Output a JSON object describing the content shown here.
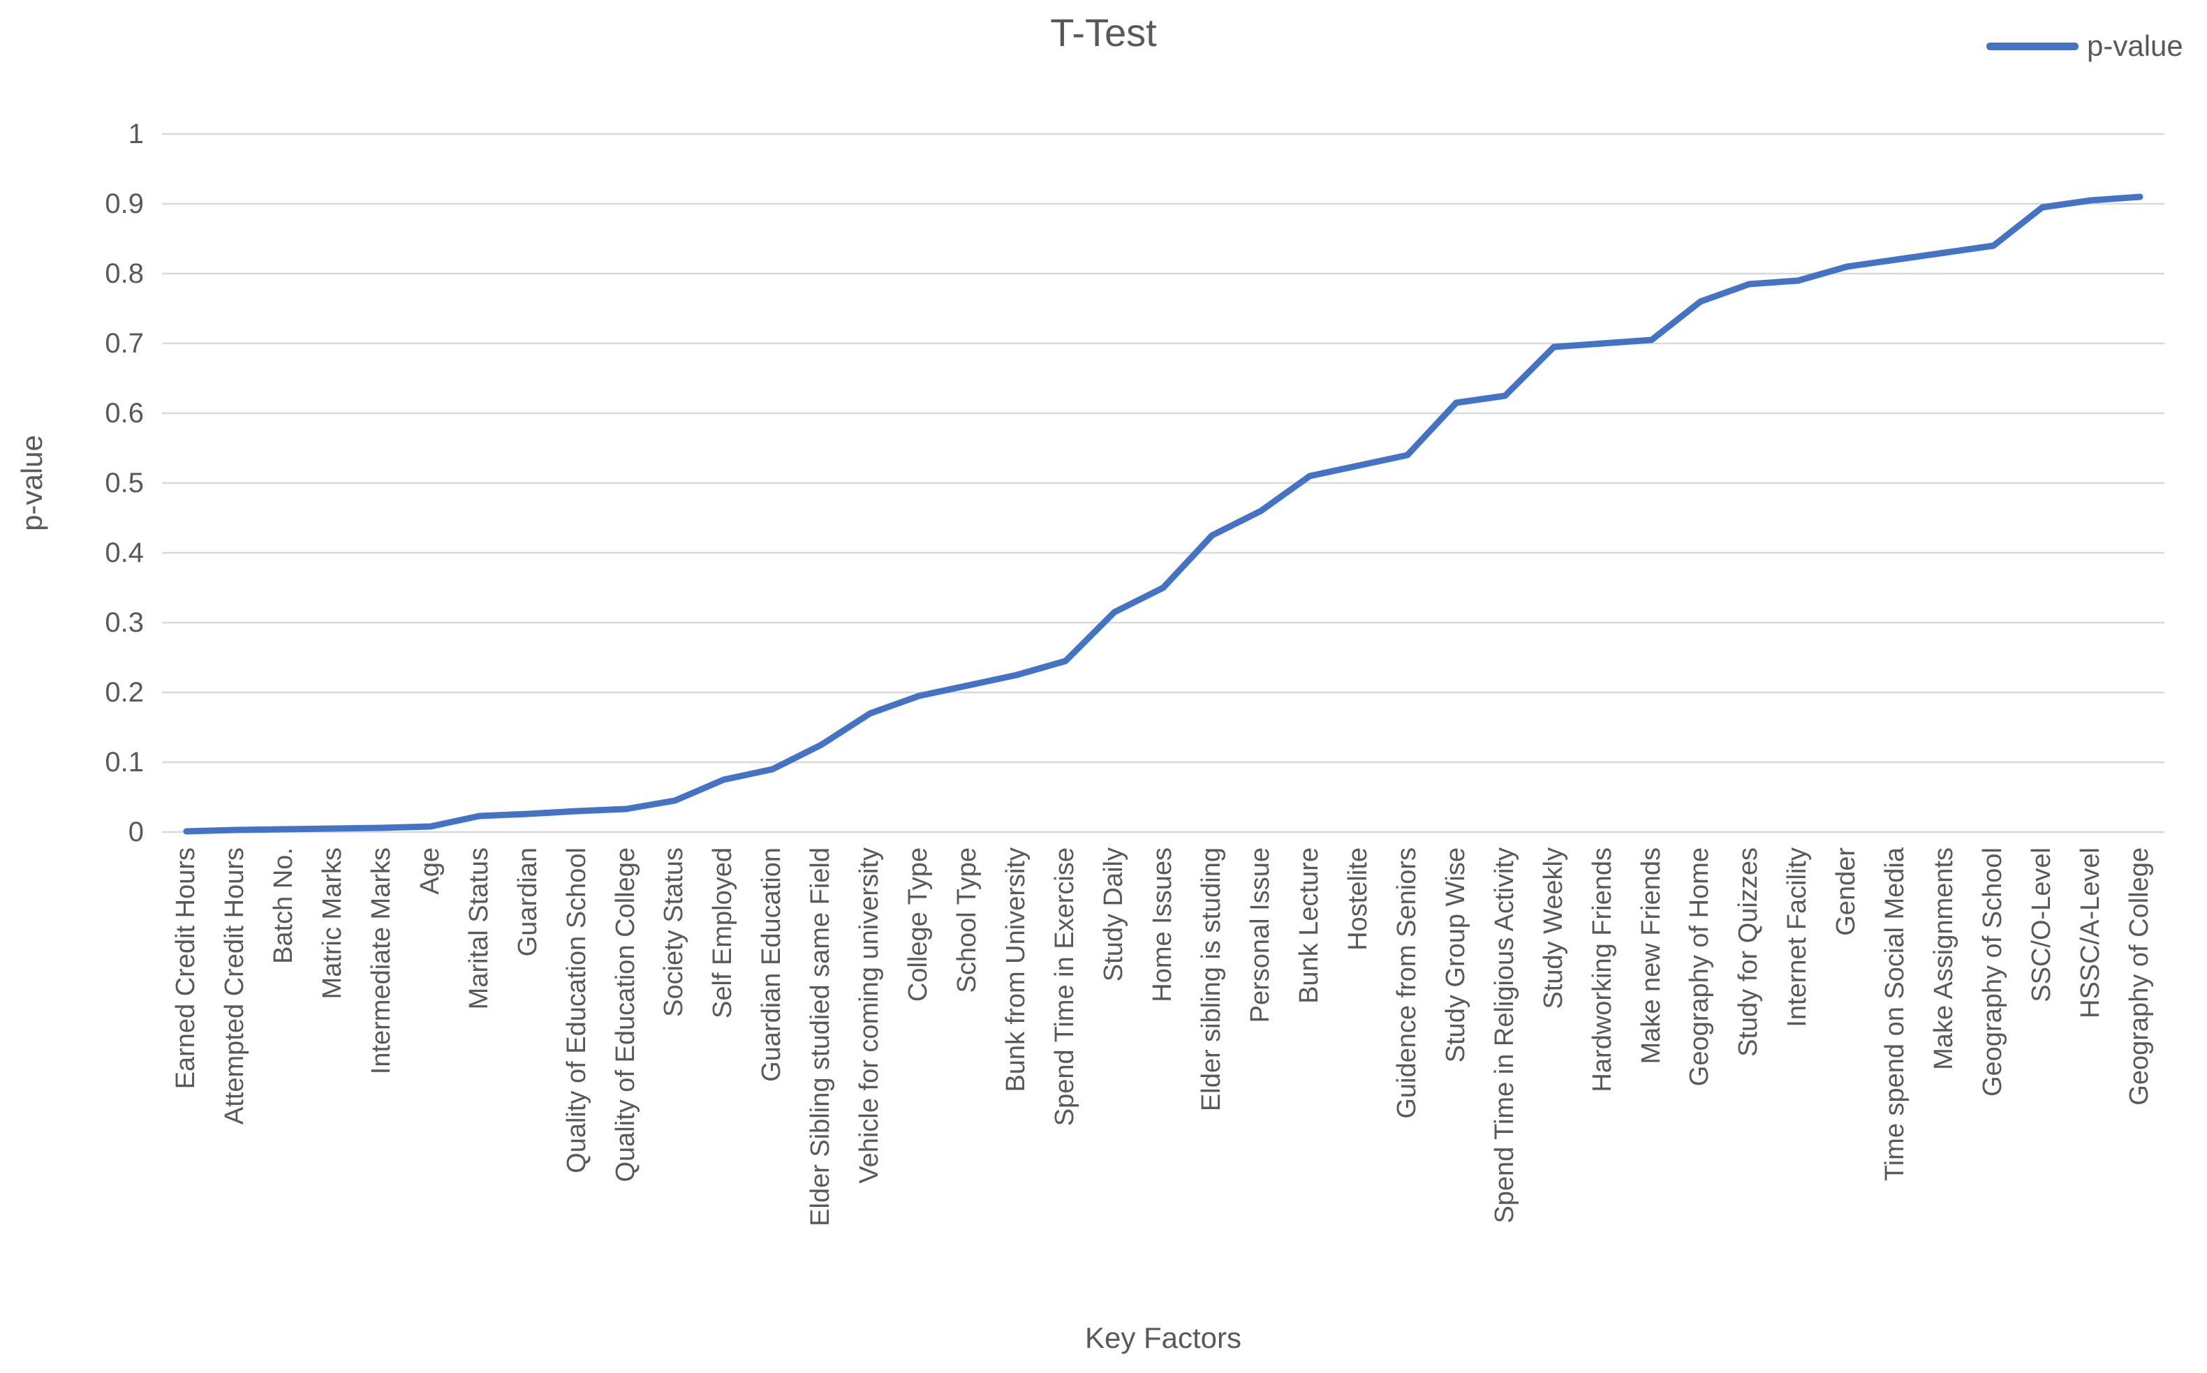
{
  "title": "T-Test",
  "legend": {
    "label": "p-value"
  },
  "y_axis": {
    "title": "p-value"
  },
  "x_axis": {
    "title": "Key Factors"
  },
  "colors": {
    "line": "#4472C4",
    "grid": "#D9D9D9",
    "text": "#595959",
    "background": "#FFFFFF"
  },
  "chart_data": {
    "type": "line",
    "title": "T-Test",
    "xlabel": "Key Factors",
    "ylabel": "p-value",
    "ylim": [
      0,
      1
    ],
    "ytick_step": 0.1,
    "grid": true,
    "legend_position": "top-right",
    "categories": [
      "Earned Credit Hours",
      "Attempted Credit Hours",
      "Batch No.",
      "Matric Marks",
      "Intermediate Marks",
      "Age",
      "Marital Status",
      "Guardian",
      "Quality of Education School",
      "Quality of Education College",
      "Society Status",
      "Self Employed",
      "Guardian Education",
      "Elder Sibling studied same Field",
      "Vehicle for coming university",
      "College Type",
      "School Type",
      "Bunk from University",
      "Spend Time in Exercise",
      "Study Daily",
      "Home Issues",
      "Elder sibling is studing",
      "Personal Issue",
      "Bunk Lecture",
      "Hostelite",
      "Guidence from Seniors",
      "Study Group Wise",
      "Spend Time in Religious Activity",
      "Study Weekly",
      "Hardworking Friends",
      "Make new Friends",
      "Geography of Home",
      "Study for Quizzes",
      "Internet Facility",
      "Gender",
      "Time spend on Social Media",
      "Make Assignments",
      "Geography of School",
      "SSC/O-Level",
      "HSSC/A-Level",
      "Geography of College"
    ],
    "series": [
      {
        "name": "p-value",
        "color": "#4472C4",
        "values": [
          0.001,
          0.003,
          0.004,
          0.005,
          0.006,
          0.008,
          0.023,
          0.026,
          0.03,
          0.033,
          0.045,
          0.075,
          0.09,
          0.125,
          0.17,
          0.195,
          0.21,
          0.225,
          0.245,
          0.315,
          0.35,
          0.425,
          0.46,
          0.51,
          0.525,
          0.54,
          0.615,
          0.625,
          0.695,
          0.7,
          0.705,
          0.76,
          0.785,
          0.79,
          0.81,
          0.82,
          0.83,
          0.84,
          0.895,
          0.905,
          0.91
        ]
      }
    ]
  }
}
